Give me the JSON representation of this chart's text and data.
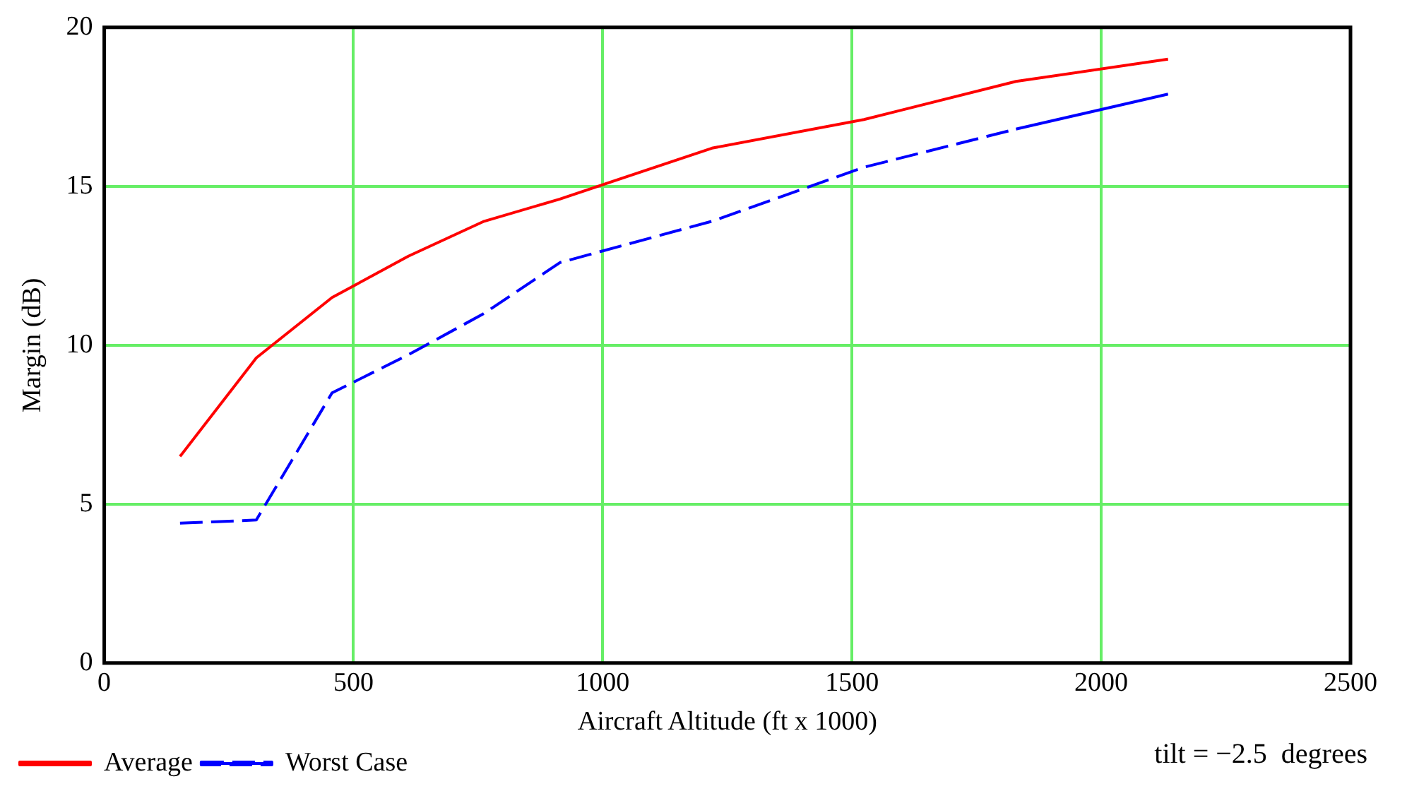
{
  "chart_data": {
    "type": "line",
    "xlabel": "Aircraft Altitude (ft x 1000)",
    "ylabel": "Margin (dB)",
    "xlim": [
      0,
      2500
    ],
    "xticks": [
      0,
      500,
      1000,
      1500,
      2000,
      2500
    ],
    "ylim": [
      0,
      20
    ],
    "yticks": [
      0,
      5,
      10,
      15,
      20
    ],
    "grid": true,
    "legend": "bottom left",
    "marker": "none",
    "annotations": [
      "tilt = −2.5  degrees"
    ],
    "series": [
      {
        "name": "Average",
        "color": "#ff0000",
        "line_style": "solid",
        "x": [
          152,
          305,
          457,
          610,
          762,
          914,
          1219,
          1524,
          1829,
          2134
        ],
        "values": [
          6.5,
          9.6,
          11.5,
          12.8,
          13.9,
          14.6,
          16.2,
          17.1,
          18.3,
          19.0
        ]
      },
      {
        "name": "Worst Case",
        "color": "#0000ff",
        "line_style": "dashed",
        "x": [
          152,
          305,
          457,
          610,
          762,
          914,
          1219,
          1524,
          1829,
          2134
        ],
        "values": [
          4.4,
          4.5,
          8.5,
          9.7,
          11.0,
          12.6,
          13.9,
          15.6,
          16.8,
          17.9
        ]
      }
    ]
  }
}
